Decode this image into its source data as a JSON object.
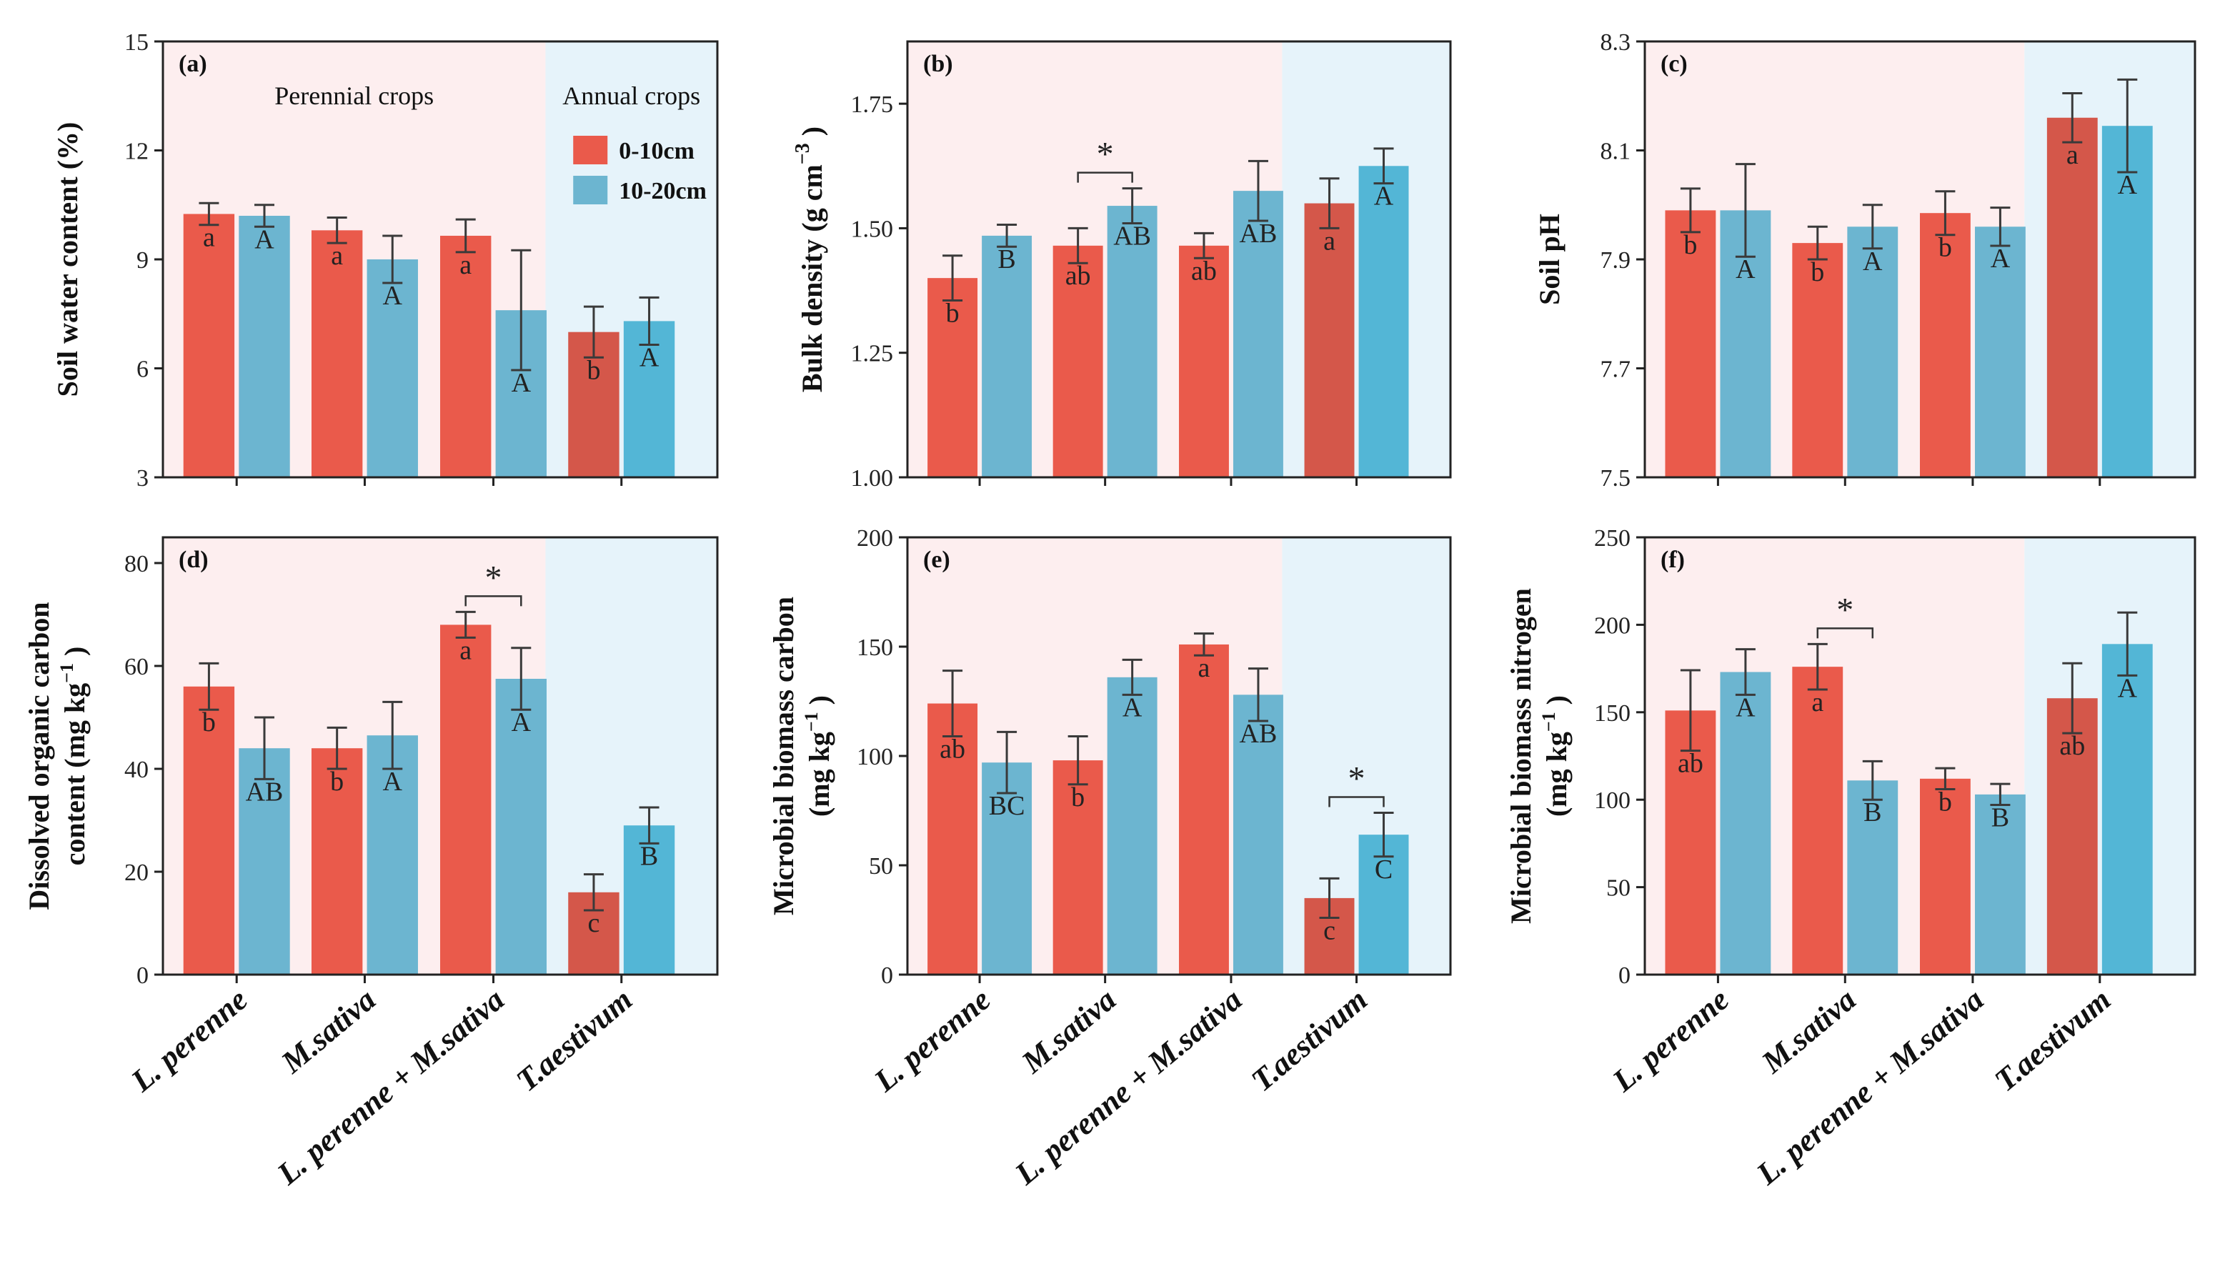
{
  "colors": {
    "bar_0_10": "#ea5a4b",
    "bar_10_20": "#6cb5d0",
    "bar_0_10_annual": "#d4574a",
    "bar_10_20_annual": "#53b6d6",
    "bg_perennial": "#fdeeef",
    "bg_annual": "#e6f3fa",
    "errbar": "#3a3a3a"
  },
  "legend": {
    "group_perennial": "Perennial crops",
    "group_annual": "Annual crops",
    "entries": [
      "0-10cm",
      "10-20cm"
    ]
  },
  "x_categories": [
    "L. perenne",
    "M.sativa",
    "L. perenne + M.sativa",
    "T.aestivum"
  ],
  "chart_data": [
    {
      "type": "bar",
      "panel": "(a)",
      "ylabel": "Soil water content (%)",
      "ylim": [
        3,
        15
      ],
      "yticks": [
        "3",
        "6",
        "9",
        "12",
        "15"
      ],
      "categories": [
        "L. perenne",
        "M.sativa",
        "L. perenne + M.sativa",
        "T.aestivum"
      ],
      "series": [
        {
          "name": "0-10cm",
          "values": [
            10.25,
            9.8,
            9.65,
            7.0
          ],
          "errors": [
            0.3,
            0.35,
            0.45,
            0.7
          ],
          "letters": [
            "a",
            "a",
            "a",
            "b"
          ]
        },
        {
          "name": "10-20cm",
          "values": [
            10.2,
            9.0,
            7.6,
            7.3
          ],
          "errors": [
            0.3,
            0.65,
            1.65,
            0.65
          ],
          "letters": [
            "A",
            "A",
            "A",
            "A"
          ]
        }
      ],
      "stars": [],
      "show_legend": true
    },
    {
      "type": "bar",
      "panel": "(b)",
      "ylabel": "Bulk density (g  cm^-3 )",
      "ylabel_parts": [
        "Bulk density (g  cm",
        "−3",
        " )"
      ],
      "ylim": [
        1.0,
        1.875
      ],
      "yticks": [
        "1.00",
        "1.25",
        "1.50",
        "1.75"
      ],
      "categories": [
        "L. perenne",
        "M.sativa",
        "L. perenne + M.sativa",
        "T.aestivum"
      ],
      "series": [
        {
          "name": "0-10cm",
          "values": [
            1.4,
            1.465,
            1.465,
            1.55
          ],
          "errors": [
            0.045,
            0.035,
            0.025,
            0.05
          ],
          "letters": [
            "b",
            "ab",
            "ab",
            "a"
          ]
        },
        {
          "name": "10-20cm",
          "values": [
            1.485,
            1.545,
            1.575,
            1.625
          ],
          "errors": [
            0.022,
            0.035,
            0.06,
            0.035
          ],
          "letters": [
            "B",
            "AB",
            "AB",
            "A"
          ]
        }
      ],
      "stars": [
        {
          "label": "*",
          "category_index": 1
        }
      ],
      "show_legend": false
    },
    {
      "type": "bar",
      "panel": "(c)",
      "ylabel": "Soil pH",
      "ylim": [
        7.5,
        8.3
      ],
      "yticks": [
        "7.5",
        "7.7",
        "7.9",
        "8.1",
        "8.3"
      ],
      "categories": [
        "L. perenne",
        "M.sativa",
        "L. perenne + M.sativa",
        "T.aestivum"
      ],
      "series": [
        {
          "name": "0-10cm",
          "values": [
            7.99,
            7.93,
            7.985,
            8.16
          ],
          "errors": [
            0.04,
            0.03,
            0.04,
            0.045
          ],
          "letters": [
            "b",
            "b",
            "b",
            "a"
          ]
        },
        {
          "name": "10-20cm",
          "values": [
            7.99,
            7.96,
            7.96,
            8.145
          ],
          "errors": [
            0.085,
            0.04,
            0.035,
            0.085
          ],
          "letters": [
            "A",
            "A",
            "A",
            "A"
          ]
        }
      ],
      "stars": [],
      "show_legend": false
    },
    {
      "type": "bar",
      "panel": "(d)",
      "ylabel_lines": [
        "Dissolved organic carbon",
        "content (mg  kg^-1 )"
      ],
      "ylabel_parts2": [
        "content (mg  kg",
        "−1",
        " )"
      ],
      "ylim": [
        0,
        85
      ],
      "yticks": [
        "0",
        "20",
        "40",
        "60",
        "80"
      ],
      "categories": [
        "L. perenne",
        "M.sativa",
        "L. perenne + M.sativa",
        "T.aestivum"
      ],
      "series": [
        {
          "name": "0-10cm",
          "values": [
            56,
            44,
            68,
            16
          ],
          "errors": [
            4.5,
            4,
            2.5,
            3.5
          ],
          "letters": [
            "b",
            "b",
            "a",
            "c"
          ]
        },
        {
          "name": "10-20cm",
          "values": [
            44,
            46.5,
            57.5,
            29
          ],
          "errors": [
            6,
            6.5,
            6,
            3.5
          ],
          "letters": [
            "AB",
            "A",
            "A",
            "B"
          ]
        }
      ],
      "stars": [
        {
          "label": "*",
          "category_index": 2
        }
      ],
      "show_legend": false
    },
    {
      "type": "bar",
      "panel": "(e)",
      "ylabel_lines": [
        "Microbial biomass carbon",
        "(mg  kg^-1 )"
      ],
      "ylabel_parts2": [
        "(mg  kg",
        "−1",
        " )"
      ],
      "ylim": [
        0,
        200
      ],
      "yticks": [
        "0",
        "50",
        "100",
        "150",
        "200"
      ],
      "categories": [
        "L. perenne",
        "M.sativa",
        "L. perenne + M.sativa",
        "T.aestivum"
      ],
      "series": [
        {
          "name": "0-10cm",
          "values": [
            124,
            98,
            151,
            35
          ],
          "errors": [
            15,
            11,
            5,
            9
          ],
          "letters": [
            "ab",
            "b",
            "a",
            "c"
          ]
        },
        {
          "name": "10-20cm",
          "values": [
            97,
            136,
            128,
            64
          ],
          "errors": [
            14,
            8,
            12,
            10
          ],
          "letters": [
            "BC",
            "A",
            "AB",
            "C"
          ]
        }
      ],
      "stars": [
        {
          "label": "*",
          "category_index": 3
        }
      ],
      "show_legend": false
    },
    {
      "type": "bar",
      "panel": "(f)",
      "ylabel_lines": [
        "Microbial biomass nitrogen",
        "(mg  kg^-1 )"
      ],
      "ylabel_parts2": [
        "(mg  kg",
        "−1",
        " )"
      ],
      "ylim": [
        0,
        250
      ],
      "yticks": [
        "0",
        "50",
        "100",
        "150",
        "200",
        "250"
      ],
      "categories": [
        "L. perenne",
        "M.sativa",
        "L. perenne + M.sativa",
        "T.aestivum"
      ],
      "series": [
        {
          "name": "0-10cm",
          "values": [
            151,
            176,
            112,
            158
          ],
          "errors": [
            23,
            13,
            6,
            20
          ],
          "letters": [
            "ab",
            "a",
            "b",
            "ab"
          ]
        },
        {
          "name": "10-20cm",
          "values": [
            173,
            111,
            103,
            189
          ],
          "errors": [
            13,
            11,
            6,
            18
          ],
          "letters": [
            "A",
            "B",
            "B",
            "A"
          ]
        }
      ],
      "stars": [
        {
          "label": "*",
          "category_index": 1
        }
      ],
      "show_legend": false
    }
  ]
}
